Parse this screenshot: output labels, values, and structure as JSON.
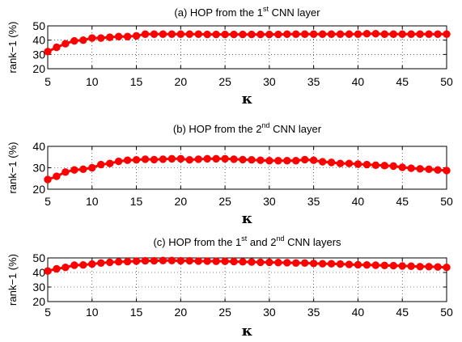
{
  "chart_data": [
    {
      "type": "line",
      "title": {
        "prefix": "(a) HOP from the 1",
        "sup1": "st",
        "mid": " CNN layer",
        "sup2": "",
        "suffix": ""
      },
      "xlabel": "κ",
      "ylabel": "rank−1 (%)",
      "xlim": [
        5,
        50
      ],
      "ylim": [
        20,
        50
      ],
      "xticks": [
        5,
        10,
        15,
        20,
        25,
        30,
        35,
        40,
        45,
        50
      ],
      "yticks": [
        20,
        30,
        40,
        50
      ],
      "grid": true,
      "color": "#ff0000",
      "series": [
        {
          "x": [
            5,
            6,
            7,
            8,
            9,
            10,
            11,
            12,
            13,
            14,
            15,
            16,
            17,
            18,
            19,
            20,
            21,
            22,
            23,
            24,
            25,
            26,
            27,
            28,
            29,
            30,
            31,
            32,
            33,
            34,
            35,
            36,
            37,
            38,
            39,
            40,
            41,
            42,
            43,
            44,
            45,
            46,
            47,
            48,
            49,
            50
          ],
          "values": [
            32,
            35,
            37.5,
            39.5,
            40,
            41.5,
            41.5,
            42,
            42.5,
            42.5,
            43,
            44.2,
            44.2,
            44.2,
            44.2,
            44.2,
            44.2,
            44.2,
            44,
            44,
            44,
            44,
            44,
            44,
            44,
            44,
            44,
            44.2,
            44.2,
            44.2,
            44.2,
            44.2,
            44.2,
            44.2,
            44.2,
            44.2,
            44.5,
            44.5,
            44.2,
            44.2,
            44.2,
            44.2,
            44.2,
            44.2,
            44.2,
            44.2
          ]
        }
      ]
    },
    {
      "type": "line",
      "title": {
        "prefix": "(b) HOP from the 2",
        "sup1": "nd",
        "mid": " CNN layer",
        "sup2": "",
        "suffix": ""
      },
      "xlabel": "κ",
      "ylabel": "rank−1 (%)",
      "xlim": [
        5,
        50
      ],
      "ylim": [
        20,
        40
      ],
      "xticks": [
        5,
        10,
        15,
        20,
        25,
        30,
        35,
        40,
        45,
        50
      ],
      "yticks": [
        20,
        30,
        40
      ],
      "grid": true,
      "color": "#ff0000",
      "series": [
        {
          "x": [
            5,
            6,
            7,
            8,
            9,
            10,
            11,
            12,
            13,
            14,
            15,
            16,
            17,
            18,
            19,
            20,
            21,
            22,
            23,
            24,
            25,
            26,
            27,
            28,
            29,
            30,
            31,
            32,
            33,
            34,
            35,
            36,
            37,
            38,
            39,
            40,
            41,
            42,
            43,
            44,
            45,
            46,
            47,
            48,
            49,
            50
          ],
          "values": [
            24.5,
            26,
            28,
            29,
            29.3,
            30,
            31.5,
            32,
            33,
            33.5,
            33.7,
            34,
            33.8,
            34,
            34.2,
            34.2,
            33.7,
            34,
            34.2,
            34.2,
            34.2,
            34,
            33.8,
            33.7,
            33.5,
            33.3,
            33.3,
            33.3,
            33.3,
            33.8,
            33.5,
            32.8,
            32.5,
            32,
            32,
            31.7,
            31.5,
            31.2,
            31,
            30.8,
            30.2,
            29.8,
            29.5,
            29.3,
            29,
            28.7
          ]
        }
      ]
    },
    {
      "type": "line",
      "title": {
        "prefix": "(c) HOP from the 1",
        "sup1": "st",
        "mid": " and 2",
        "sup2": "nd",
        "suffix": " CNN layers"
      },
      "xlabel": "κ",
      "ylabel": "rank−1 (%)",
      "xlim": [
        5,
        50
      ],
      "ylim": [
        20,
        50
      ],
      "xticks": [
        5,
        10,
        15,
        20,
        25,
        30,
        35,
        40,
        45,
        50
      ],
      "yticks": [
        20,
        30,
        40,
        50
      ],
      "grid": true,
      "color": "#ff0000",
      "series": [
        {
          "x": [
            5,
            6,
            7,
            8,
            9,
            10,
            11,
            12,
            13,
            14,
            15,
            16,
            17,
            18,
            19,
            20,
            21,
            22,
            23,
            24,
            25,
            26,
            27,
            28,
            29,
            30,
            31,
            32,
            33,
            34,
            35,
            36,
            37,
            38,
            39,
            40,
            41,
            42,
            43,
            44,
            45,
            46,
            47,
            48,
            49,
            50
          ],
          "values": [
            41,
            42.5,
            43.5,
            45,
            45.2,
            45.8,
            46.5,
            47,
            47.3,
            47.5,
            47.8,
            48,
            48,
            48.2,
            48.2,
            48,
            48,
            47.8,
            47.8,
            47.7,
            47.7,
            47.5,
            47.3,
            47.2,
            47,
            47,
            46.8,
            46.7,
            46.5,
            46.5,
            46.2,
            46,
            46,
            45.8,
            45.5,
            45.3,
            45.2,
            45,
            44.8,
            44.7,
            44.5,
            44.3,
            44,
            44,
            43.8,
            43.5
          ]
        }
      ]
    }
  ]
}
